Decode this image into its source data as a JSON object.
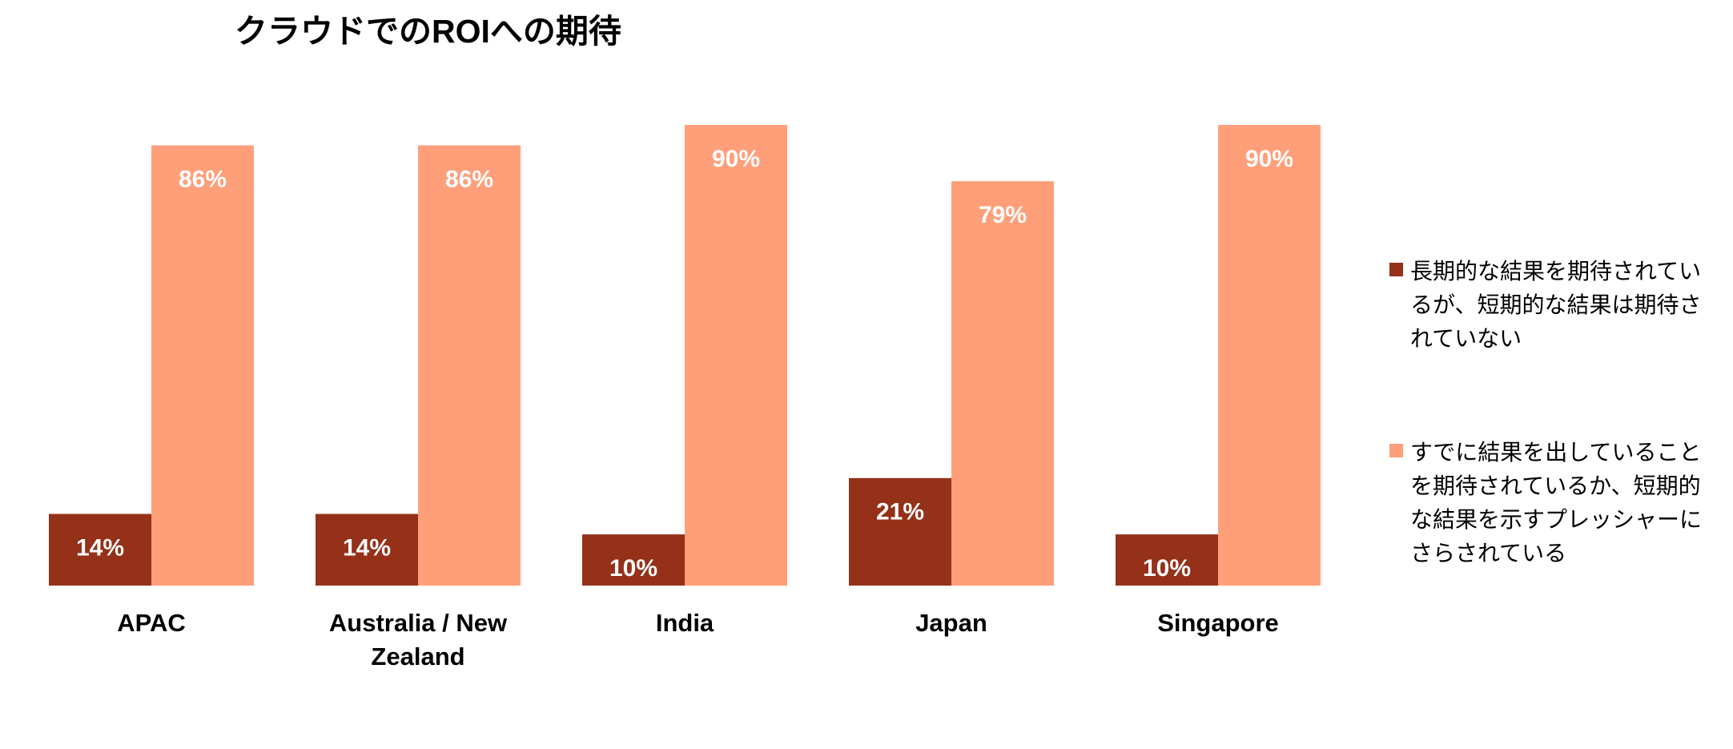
{
  "chart_data": {
    "type": "bar",
    "title": "クラウドでのROIへの期待",
    "categories": [
      "APAC",
      "Australia / New Zealand",
      "India",
      "Japan",
      "Singapore"
    ],
    "series": [
      {
        "name": "長期的な結果を期待されているが、短期的な結果は期待されていない",
        "color": "#943118",
        "values": [
          14,
          14,
          10,
          21,
          10
        ],
        "value_labels": [
          "14%",
          "14%",
          "10%",
          "21%",
          "10%"
        ]
      },
      {
        "name": "すでに結果を出していることを期待されているか、短期的な結果を示すプレッシャーにさらされている",
        "color": "#ff9f7a",
        "values": [
          86,
          86,
          90,
          79,
          90
        ],
        "value_labels": [
          "86%",
          "86%",
          "90%",
          "79%",
          "90%"
        ]
      }
    ],
    "ylim": [
      0,
      100
    ],
    "legend": "right"
  }
}
